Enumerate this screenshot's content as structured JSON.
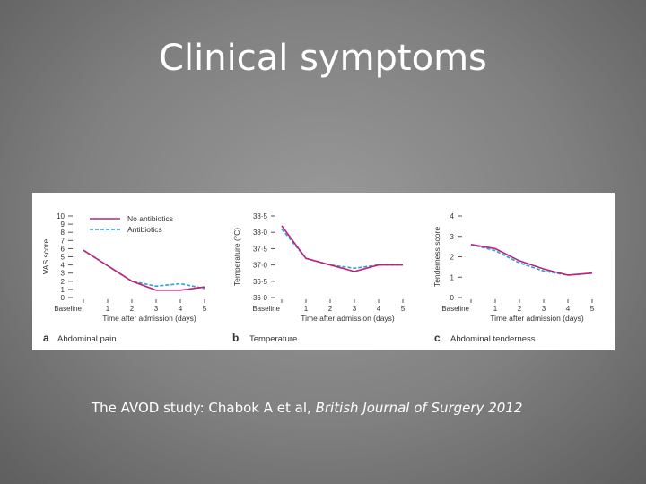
{
  "slide": {
    "title": "Clinical symptoms",
    "citation_prefix": "The AVOD study: Chabok A et al, ",
    "citation_journal": "British Journal of Surgery 2012"
  },
  "legend": {
    "entries": [
      {
        "name": "No antibiotics",
        "color": "#c0207a",
        "dash": false
      },
      {
        "name": "Antibiotics",
        "color": "#2ba0d8",
        "dash": true
      }
    ]
  },
  "chart_data": [
    {
      "type": "line",
      "panel_letter": "a",
      "panel_title": "Abdominal pain",
      "ylabel": "VAS score",
      "xlabel": "Time after admission (days)",
      "categories": [
        "Baseline",
        "1",
        "2",
        "3",
        "4",
        "5"
      ],
      "ylim": [
        0,
        10
      ],
      "yticks": [
        "0",
        "1",
        "2",
        "3",
        "4",
        "5",
        "6",
        "7",
        "8",
        "9",
        "10"
      ],
      "series": [
        {
          "name": "No antibiotics",
          "values": [
            5.8,
            3.9,
            2.0,
            0.9,
            0.9,
            1.3
          ]
        },
        {
          "name": "Antibiotics",
          "values": [
            5.8,
            3.9,
            2.0,
            1.4,
            1.7,
            1.1
          ]
        }
      ]
    },
    {
      "type": "line",
      "panel_letter": "b",
      "panel_title": "Temperature",
      "ylabel": "Temperature (°C)",
      "xlabel": "Time after admission (days)",
      "categories": [
        "Baseline",
        "1",
        "2",
        "3",
        "4",
        "5"
      ],
      "ylim": [
        36.0,
        38.5
      ],
      "yticks": [
        "36·0",
        "36·5",
        "37·0",
        "37·5",
        "38·0",
        "38·5"
      ],
      "series": [
        {
          "name": "No antibiotics",
          "values": [
            38.2,
            37.2,
            37.0,
            36.8,
            37.0,
            37.0
          ]
        },
        {
          "name": "Antibiotics",
          "values": [
            38.1,
            37.2,
            37.0,
            36.9,
            37.0,
            37.0
          ]
        }
      ]
    },
    {
      "type": "line",
      "panel_letter": "c",
      "panel_title": "Abdominal tenderness",
      "ylabel": "Tenderness score",
      "xlabel": "Time after admission (days)",
      "categories": [
        "Baseline",
        "1",
        "2",
        "3",
        "4",
        "5"
      ],
      "ylim": [
        0,
        4
      ],
      "yticks": [
        "0",
        "1",
        "2",
        "3",
        "4"
      ],
      "series": [
        {
          "name": "No antibiotics",
          "values": [
            2.6,
            2.4,
            1.8,
            1.4,
            1.1,
            1.2
          ]
        },
        {
          "name": "Antibiotics",
          "values": [
            2.6,
            2.3,
            1.7,
            1.3,
            1.1,
            1.2
          ]
        }
      ]
    }
  ]
}
